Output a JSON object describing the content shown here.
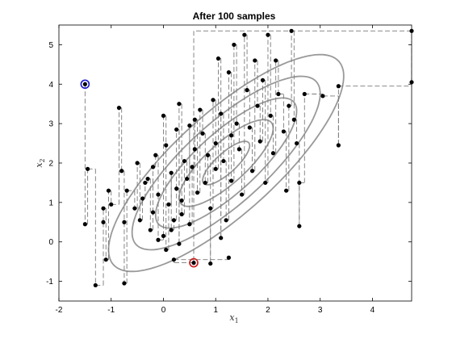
{
  "chart_data": {
    "type": "scatter",
    "title": "After 100 samples",
    "xlabel": {
      "main": "x",
      "sub": "1"
    },
    "ylabel": {
      "main": "x",
      "sub": "2"
    },
    "xlim": [
      -2,
      4.75
    ],
    "ylim": [
      -1.5,
      5.5
    ],
    "xticks": [
      -2,
      -1,
      0,
      1,
      2,
      3,
      4
    ],
    "yticks": [
      -1,
      0,
      1,
      2,
      3,
      4,
      5
    ],
    "grid": false,
    "start_point": {
      "x": -1.5,
      "y": 4.0,
      "color": "#1a1acc"
    },
    "end_point": {
      "x": 0.58,
      "y": -0.53,
      "color": "#cc1a1a"
    },
    "gaussian": {
      "mean": [
        1.2,
        2.0
      ],
      "sd": [
        0.9,
        1.1
      ],
      "rho": 0.8,
      "contour_levels": [
        0.5,
        1.0,
        1.5,
        2.0,
        2.5
      ]
    },
    "colors": {
      "samples": "#000000",
      "path": "#7a7a7a",
      "contours": "#999999"
    },
    "points": [
      [
        -1.5,
        4.0
      ],
      [
        -1.5,
        0.45
      ],
      [
        -1.45,
        1.85
      ],
      [
        -1.3,
        -1.1
      ],
      [
        -1.15,
        0.5
      ],
      [
        -1.15,
        0.85
      ],
      [
        -1.1,
        -0.45
      ],
      [
        -1.05,
        1.3
      ],
      [
        -1.0,
        0.95
      ],
      [
        -0.85,
        3.4
      ],
      [
        -0.8,
        1.8
      ],
      [
        -0.75,
        0.5
      ],
      [
        -0.75,
        -1.05
      ],
      [
        -0.7,
        1.3
      ],
      [
        -0.55,
        0.85
      ],
      [
        -0.5,
        2.0
      ],
      [
        -0.45,
        0.55
      ],
      [
        -0.4,
        1.1
      ],
      [
        -0.35,
        1.5
      ],
      [
        -0.3,
        1.6
      ],
      [
        -0.25,
        0.3
      ],
      [
        -0.2,
        0.75
      ],
      [
        -0.2,
        1.9
      ],
      [
        -0.15,
        2.2
      ],
      [
        -0.1,
        1.2
      ],
      [
        -0.1,
        0.05
      ],
      [
        0.0,
        0.15
      ],
      [
        0.0,
        3.2
      ],
      [
        0.05,
        2.45
      ],
      [
        0.05,
        -0.2
      ],
      [
        0.1,
        0.95
      ],
      [
        0.15,
        1.75
      ],
      [
        0.15,
        0.3
      ],
      [
        0.2,
        0.55
      ],
      [
        0.25,
        1.35
      ],
      [
        0.25,
        2.85
      ],
      [
        0.3,
        -0.05
      ],
      [
        0.3,
        3.5
      ],
      [
        0.35,
        1.05
      ],
      [
        0.35,
        0.7
      ],
      [
        0.4,
        2.05
      ],
      [
        0.45,
        1.6
      ],
      [
        0.5,
        2.95
      ],
      [
        0.5,
        0.45
      ],
      [
        0.55,
        1.9
      ],
      [
        0.6,
        2.35
      ],
      [
        0.6,
        3.1
      ],
      [
        0.65,
        1.25
      ],
      [
        0.7,
        3.35
      ],
      [
        0.75,
        2.75
      ],
      [
        0.8,
        1.5
      ],
      [
        0.85,
        2.2
      ],
      [
        0.9,
        -0.55
      ],
      [
        0.9,
        0.85
      ],
      [
        0.95,
        3.6
      ],
      [
        1.0,
        2.5
      ],
      [
        1.0,
        1.85
      ],
      [
        1.05,
        4.65
      ],
      [
        1.1,
        0.1
      ],
      [
        1.1,
        3.25
      ],
      [
        1.15,
        2.05
      ],
      [
        1.2,
        0.55
      ],
      [
        1.25,
        4.3
      ],
      [
        1.3,
        2.7
      ],
      [
        1.3,
        1.55
      ],
      [
        1.35,
        5.0
      ],
      [
        1.4,
        3.0
      ],
      [
        1.45,
        2.35
      ],
      [
        1.5,
        1.2
      ],
      [
        1.55,
        5.25
      ],
      [
        1.6,
        3.85
      ],
      [
        1.65,
        2.9
      ],
      [
        1.7,
        1.8
      ],
      [
        1.75,
        4.6
      ],
      [
        1.8,
        3.45
      ],
      [
        1.85,
        2.55
      ],
      [
        1.9,
        4.1
      ],
      [
        1.95,
        1.5
      ],
      [
        2.0,
        5.25
      ],
      [
        2.05,
        3.2
      ],
      [
        2.1,
        2.25
      ],
      [
        2.15,
        4.6
      ],
      [
        2.2,
        3.75
      ],
      [
        2.3,
        2.8
      ],
      [
        2.35,
        1.3
      ],
      [
        2.4,
        3.45
      ],
      [
        2.45,
        5.35
      ],
      [
        2.5,
        3.1
      ],
      [
        2.55,
        2.5
      ],
      [
        2.6,
        0.4
      ],
      [
        2.6,
        1.5
      ],
      [
        2.7,
        3.75
      ],
      [
        3.05,
        3.7
      ],
      [
        3.35,
        2.45
      ],
      [
        3.35,
        3.95
      ],
      [
        4.75,
        4.05
      ],
      [
        4.75,
        5.35
      ],
      [
        0.58,
        -0.53
      ],
      [
        0.2,
        -0.45
      ],
      [
        1.25,
        -0.4
      ]
    ]
  }
}
